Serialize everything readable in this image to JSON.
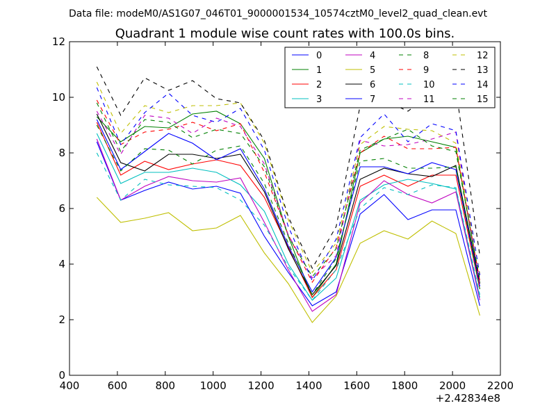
{
  "chart_data": {
    "type": "line",
    "suptitle": "Data file: modeM0/AS1G07_046T01_9000001534_10574cztM0_level2_quad_clean.evt",
    "title": "Quadrant 1 module wise count rates with 100.0s bins.",
    "xlabel": "",
    "ylabel": "",
    "x_offset_label": "+2.42834e8",
    "xlim": [
      400,
      2200
    ],
    "ylim": [
      0,
      12
    ],
    "xticks": [
      400,
      600,
      800,
      1000,
      1200,
      1400,
      1600,
      1800,
      2000,
      2200
    ],
    "yticks": [
      0,
      2,
      4,
      6,
      8,
      10,
      12
    ],
    "x": [
      514,
      614,
      714,
      814,
      914,
      1014,
      1114,
      1214,
      1314,
      1414,
      1514,
      1614,
      1714,
      1814,
      1914,
      2014,
      2114
    ],
    "legend_position": "top-right",
    "series": [
      {
        "name": "0",
        "color": "#0000ff",
        "dash": false,
        "values": [
          8.4,
          6.3,
          6.65,
          6.95,
          6.7,
          6.8,
          6.55,
          5.0,
          3.7,
          2.5,
          3.0,
          5.8,
          6.5,
          5.6,
          5.95,
          5.95,
          2.5
        ]
      },
      {
        "name": "1",
        "color": "#008000",
        "dash": false,
        "values": [
          9.3,
          8.4,
          8.95,
          8.9,
          9.4,
          9.5,
          9.05,
          7.8,
          5.0,
          2.8,
          4.0,
          8.0,
          8.5,
          8.6,
          8.4,
          8.2,
          3.3
        ]
      },
      {
        "name": "2",
        "color": "#ff0000",
        "dash": false,
        "values": [
          9.1,
          7.2,
          7.7,
          7.4,
          7.6,
          7.75,
          7.55,
          6.4,
          4.6,
          2.8,
          3.8,
          6.8,
          7.2,
          6.8,
          7.2,
          7.2,
          3.1
        ]
      },
      {
        "name": "3",
        "color": "#00bfbf",
        "dash": false,
        "values": [
          8.7,
          6.9,
          7.3,
          7.3,
          7.45,
          7.3,
          6.85,
          5.9,
          4.0,
          2.7,
          3.5,
          6.3,
          6.85,
          7.05,
          6.9,
          6.7,
          2.8
        ]
      },
      {
        "name": "4",
        "color": "#bf00bf",
        "dash": false,
        "values": [
          8.5,
          6.3,
          6.8,
          7.15,
          7.0,
          6.95,
          7.1,
          5.5,
          3.8,
          2.3,
          2.9,
          6.2,
          7.0,
          6.5,
          6.2,
          6.6,
          2.7
        ]
      },
      {
        "name": "5",
        "color": "#bfbf00",
        "dash": false,
        "values": [
          6.4,
          5.5,
          5.65,
          5.85,
          5.2,
          5.3,
          5.75,
          4.4,
          3.3,
          1.9,
          2.85,
          4.75,
          5.2,
          4.9,
          5.55,
          5.1,
          2.15
        ]
      },
      {
        "name": "6",
        "color": "#000000",
        "dash": false,
        "values": [
          9.4,
          7.65,
          7.35,
          7.95,
          7.95,
          7.8,
          7.95,
          6.6,
          4.55,
          2.9,
          3.95,
          7.05,
          7.45,
          7.25,
          7.15,
          7.55,
          3.3
        ]
      },
      {
        "name": "7",
        "color": "#0000ff",
        "dash": false,
        "values": [
          9.2,
          7.4,
          8.05,
          8.7,
          8.35,
          7.75,
          8.15,
          6.7,
          4.65,
          3.0,
          4.25,
          7.5,
          7.5,
          7.25,
          7.65,
          7.4,
          3.2
        ]
      },
      {
        "name": "8",
        "color": "#008000",
        "dash": true,
        "values": [
          9.0,
          7.35,
          8.15,
          8.1,
          7.6,
          8.1,
          8.25,
          6.9,
          4.75,
          2.9,
          4.2,
          7.7,
          7.8,
          7.45,
          7.45,
          7.5,
          3.1
        ]
      },
      {
        "name": "9",
        "color": "#ff0000",
        "dash": true,
        "values": [
          9.9,
          8.3,
          8.75,
          8.85,
          9.1,
          8.8,
          9.05,
          7.3,
          5.05,
          3.35,
          4.6,
          8.0,
          8.6,
          8.15,
          8.15,
          8.2,
          3.4
        ]
      },
      {
        "name": "10",
        "color": "#00bfbf",
        "dash": true,
        "values": [
          8.0,
          6.3,
          7.05,
          6.85,
          6.8,
          6.75,
          6.3,
          5.4,
          3.9,
          2.7,
          3.8,
          6.0,
          6.75,
          6.5,
          6.85,
          6.75,
          2.9
        ]
      },
      {
        "name": "11",
        "color": "#bf00bf",
        "dash": true,
        "values": [
          9.5,
          7.95,
          9.35,
          9.25,
          8.7,
          9.25,
          8.95,
          7.6,
          5.05,
          3.5,
          4.3,
          8.45,
          8.25,
          8.3,
          8.5,
          8.75,
          3.2
        ]
      },
      {
        "name": "12",
        "color": "#bfbf00",
        "dash": true,
        "values": [
          10.55,
          8.7,
          9.7,
          9.45,
          9.7,
          9.7,
          9.8,
          8.35,
          5.6,
          3.7,
          4.75,
          8.3,
          8.95,
          8.85,
          8.8,
          8.35,
          3.65
        ]
      },
      {
        "name": "13",
        "color": "#000000",
        "dash": true,
        "values": [
          11.1,
          9.35,
          10.7,
          10.25,
          10.6,
          9.95,
          9.8,
          8.45,
          5.7,
          3.85,
          5.35,
          9.7,
          9.9,
          9.5,
          10.15,
          10.3,
          4.3
        ]
      },
      {
        "name": "14",
        "color": "#0000ff",
        "dash": true,
        "values": [
          10.35,
          8.3,
          9.45,
          10.15,
          9.35,
          9.1,
          9.6,
          8.1,
          5.35,
          3.4,
          4.9,
          8.55,
          9.4,
          8.4,
          9.05,
          8.8,
          3.6
        ]
      },
      {
        "name": "15",
        "color": "#008000",
        "dash": true,
        "values": [
          9.8,
          8.05,
          9.2,
          9.1,
          8.55,
          8.85,
          8.7,
          7.5,
          5.0,
          3.55,
          4.55,
          8.1,
          8.5,
          8.85,
          8.25,
          8.05,
          3.45
        ]
      }
    ]
  }
}
